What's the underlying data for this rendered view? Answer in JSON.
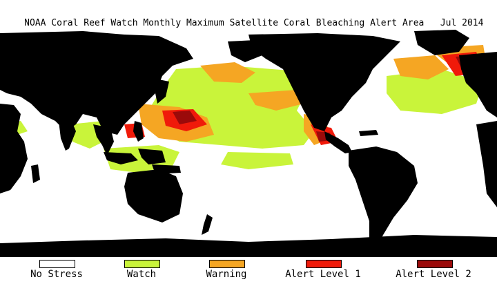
{
  "title": {
    "text": "NOAA Coral Reef Watch Monthly Maximum Satellite Coral Bleaching Alert Area",
    "date": "Jul 2014"
  },
  "colors": {
    "land": "#000000",
    "no_stress": "#ffffff",
    "watch": "#c9f43a",
    "warning": "#f5a623",
    "alert_level_1": "#f01a0a",
    "alert_level_2": "#9b0a0a"
  },
  "legend": [
    {
      "label": "No Stress",
      "color": "#ffffff"
    },
    {
      "label": "Watch",
      "color": "#c9f43a"
    },
    {
      "label": "Warning",
      "color": "#f5a623"
    },
    {
      "label": "Alert Level 1",
      "color": "#f01a0a"
    },
    {
      "label": "Alert Level 2",
      "color": "#9b0a0a"
    }
  ]
}
